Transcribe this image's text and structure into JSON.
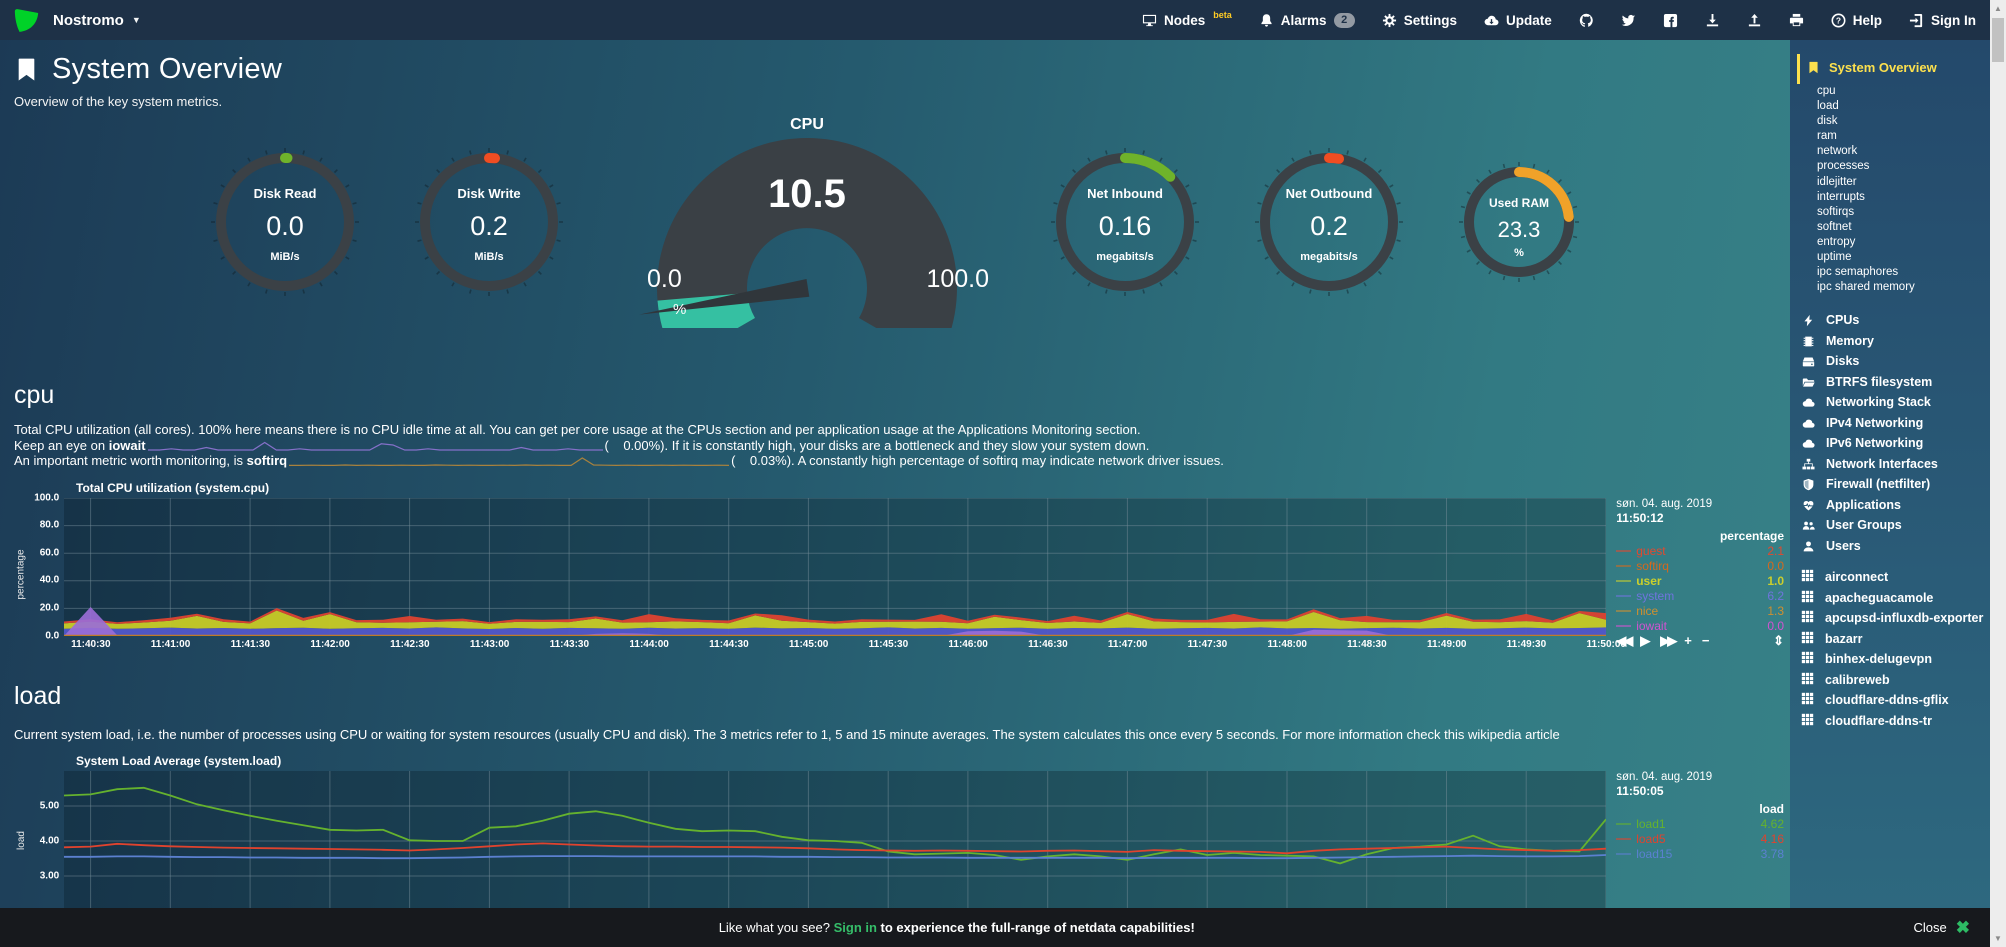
{
  "colors": {
    "brand_green": "#00d228",
    "topbar_bg": "#1e3147",
    "accent_yellow": "#fce04e",
    "beta_yellow": "#ffcc24",
    "signin_green": "#35bd69",
    "gauge_ring": "#3b4146",
    "gauge_teal": "#35c0a2",
    "black_bar": "#17191d"
  },
  "topbar": {
    "hostname": "Nostromo",
    "menu": [
      {
        "label": "Nodes",
        "icon": "desktop-icon",
        "sup": "beta"
      },
      {
        "label": "Alarms",
        "icon": "bell-icon",
        "badge": "2"
      },
      {
        "label": "Settings",
        "icon": "gear-icon"
      },
      {
        "label": "Update",
        "icon": "cloud-download-icon"
      }
    ],
    "icon_links": [
      "github-icon",
      "twitter-icon",
      "facebook-icon",
      "download-icon",
      "upload-icon",
      "print-icon"
    ],
    "help_label": "Help",
    "signin_label": "Sign In"
  },
  "header": {
    "title": "System Overview",
    "subtitle": "Overview of the key system metrics."
  },
  "gauges": [
    {
      "type": "pie",
      "title": "Disk Read",
      "value": "0.0",
      "unit": "MiB/s",
      "pct": 0.5,
      "color": "#6fb32b",
      "size": 152
    },
    {
      "type": "pie",
      "title": "Disk Write",
      "value": "0.2",
      "unit": "MiB/s",
      "pct": 1.5,
      "color": "#f04d22",
      "size": 152
    },
    {
      "type": "meter",
      "title": "CPU",
      "value": "10.5",
      "min": "0.0",
      "max": "100.0",
      "unit": "%",
      "pct": 10.5,
      "color": "#35c0a2"
    },
    {
      "type": "pie",
      "title": "Net Inbound",
      "value": "0.16",
      "unit": "megabits/s",
      "pct": 12.5,
      "color": "#6fb32b",
      "size": 152
    },
    {
      "type": "pie",
      "title": "Net Outbound",
      "value": "0.2",
      "unit": "megabits/s",
      "pct": 2.5,
      "color": "#f04d22",
      "size": 152
    },
    {
      "type": "pie",
      "title": "Used RAM",
      "value": "23.3",
      "unit": "%",
      "pct": 23.3,
      "color": "#f0a229",
      "size": 124,
      "small": true
    }
  ],
  "sections": {
    "cpu": {
      "heading": "cpu",
      "desc1": "Total CPU utilization (all cores). 100% here means there is no CPU idle time at all. You can get per core usage at the CPUs section and per application usage at the Applications Monitoring section.",
      "desc2_pre": "Keep an eye on ",
      "desc2_bold": "iowait",
      "desc2_post": "(    0.00%). If it is constantly high, your disks are a bottleneck and they slow your system down.",
      "desc3_pre": "An important metric worth monitoring, is ",
      "desc3_bold": "softirq",
      "desc3_post": "(    0.03%). A constantly high percentage of softirq may indicate network driver issues.",
      "chart": {
        "title": "Total CPU utilization (system.cpu)",
        "date": "søn. 04. aug. 2019",
        "time": "11:50:12",
        "units_header": "percentage",
        "ylabel": "percentage",
        "legend": [
          {
            "name": "guest",
            "value": "2.1",
            "color": "#e2492f"
          },
          {
            "name": "softirq",
            "value": "0.0",
            "color": "#d4691e"
          },
          {
            "name": "user",
            "value": "1.0",
            "color": "#cbcf2c",
            "bold": true
          },
          {
            "name": "system",
            "value": "6.2",
            "color": "#6f74dd"
          },
          {
            "name": "nice",
            "value": "1.3",
            "color": "#cf8f2f"
          },
          {
            "name": "iowait",
            "value": "0.0",
            "color": "#d153d1"
          }
        ],
        "toolbar": [
          "backwards",
          "play",
          "forwards",
          "zoom-in",
          "zoom-out",
          "resize"
        ]
      }
    },
    "load": {
      "heading": "load",
      "desc": "Current system load, i.e. the number of processes using CPU or waiting for system resources (usually CPU and disk). The 3 metrics refer to 1, 5 and 15 minute averages. The system calculates this once every 5 seconds. For more information check this wikipedia article",
      "chart": {
        "title": "System Load Average (system.load)",
        "date": "søn. 04. aug. 2019",
        "time": "11:50:05",
        "units_header": "load",
        "ylabel": "load",
        "legend": [
          {
            "name": "load1",
            "value": "4.62",
            "color": "#65b22e"
          },
          {
            "name": "load5",
            "value": "4.16",
            "color": "#e0432e"
          },
          {
            "name": "load15",
            "value": "3.78",
            "color": "#5b80d0"
          }
        ]
      }
    }
  },
  "chart_data": [
    {
      "id": "system.cpu",
      "type": "area",
      "title": "Total CPU utilization (system.cpu)",
      "ylabel": "percentage",
      "ylim": [
        0,
        100
      ],
      "ytick_labels": [
        "100.0",
        "80.0",
        "60.0",
        "40.0",
        "20.0",
        "0.0"
      ],
      "x_tick_labels": [
        "11:40:30",
        "11:41:00",
        "11:41:30",
        "11:42:00",
        "11:42:30",
        "11:43:00",
        "11:43:30",
        "11:44:00",
        "11:44:30",
        "11:45:00",
        "11:45:30",
        "11:46:00",
        "11:46:30",
        "11:47:00",
        "11:47:30",
        "11:48:00",
        "11:48:30",
        "11:49:00",
        "11:49:30",
        "11:50:00"
      ],
      "tick_start": 1,
      "tick_every": 3,
      "baseline_value": 0.4,
      "baseline_color": "#c07b28",
      "series": [
        {
          "name": "system",
          "color": "#5157c9",
          "values": [
            5.3,
            5.9,
            5.2,
            5.6,
            6.1,
            5.4,
            5.8,
            5.2,
            5.7,
            6.0,
            5.3,
            5.6,
            5.9,
            5.4,
            6.2,
            5.5,
            5.1,
            5.8,
            5.3,
            5.9,
            5.6,
            5.2,
            6.0,
            5.4,
            5.7,
            5.3,
            6.1,
            5.5,
            5.8,
            5.2,
            5.6,
            6.2,
            5.4,
            5.9,
            5.3,
            5.7,
            6.0,
            5.2,
            5.8,
            5.5,
            6.1,
            5.3,
            5.6,
            5.9,
            5.4,
            6.2,
            5.5,
            5.8,
            5.2,
            5.7,
            6.0,
            5.4,
            5.9,
            5.3,
            5.6,
            6.1,
            5.5,
            5.8,
            6.2
          ]
        },
        {
          "name": "user",
          "color": "#c6ca26",
          "values": [
            3.8,
            4.5,
            3.6,
            4.2,
            5.0,
            9.2,
            4.4,
            3.9,
            12.8,
            5.1,
            10.6,
            4.3,
            3.7,
            4.6,
            4.1,
            5.3,
            3.8,
            4.4,
            4.9,
            4.2,
            7.1,
            4.5,
            3.9,
            5.2,
            4.4,
            4.0,
            8.8,
            5.6,
            4.3,
            3.8,
            4.6,
            4.1,
            5.0,
            4.4,
            3.9,
            8.2,
            5.5,
            4.2,
            4.7,
            4.0,
            9.8,
            5.3,
            4.5,
            3.9,
            4.8,
            4.2,
            5.1,
            11.6,
            6.2,
            4.4,
            3.9,
            4.6,
            8.9,
            5.0,
            4.3,
            4.7,
            4.1,
            10.8,
            5.6
          ]
        },
        {
          "name": "guest",
          "color": "#dc4331",
          "values": [
            1.4,
            1.8,
            1.2,
            1.6,
            2.1,
            1.5,
            1.9,
            1.3,
            1.7,
            2.0,
            1.4,
            1.6,
            2.2,
            4.5,
            1.5,
            1.8,
            1.2,
            1.9,
            1.6,
            2.1,
            1.5,
            1.7,
            6.0,
            2.3,
            1.6,
            1.9,
            1.4,
            4.0,
            1.8,
            1.5,
            2.0,
            1.6,
            1.3,
            5.5,
            1.9,
            1.5,
            1.8,
            1.4,
            4.2,
            1.7,
            1.5,
            2.1,
            1.6,
            1.9,
            5.8,
            1.7,
            1.4,
            2.0,
            1.6,
            4.5,
            1.8,
            1.5,
            1.9,
            1.6,
            2.1,
            5.2,
            1.7,
            1.5,
            4.8
          ]
        },
        {
          "name": "iowait",
          "color": "#9a6cd6",
          "values": [
            0,
            21,
            0.5,
            0,
            0,
            0,
            0,
            0,
            0,
            0,
            0,
            0,
            0,
            0,
            0,
            0,
            0,
            0,
            0,
            0,
            1.5,
            2.0,
            1.5,
            0,
            0,
            0,
            0,
            0,
            0,
            0,
            0,
            0,
            0,
            0,
            3.5,
            3.8,
            3.2,
            0,
            0,
            0,
            0,
            0,
            0,
            0,
            0,
            0,
            0,
            4.5,
            4.2,
            3.9,
            0,
            0,
            0,
            0,
            0,
            0,
            0,
            0,
            0
          ]
        }
      ]
    },
    {
      "id": "system.load",
      "type": "line",
      "title": "System Load Average (system.load)",
      "ylabel": "load",
      "ylim": [
        2.0,
        6.0
      ],
      "gridlines": [
        5,
        4,
        3
      ],
      "ytick_labels": [
        "5.00",
        "4.00",
        "3.00"
      ],
      "tick_start": 1,
      "tick_every": 3,
      "series": [
        {
          "name": "load1",
          "color": "#65b22e",
          "values": [
            5.3,
            5.33,
            5.48,
            5.52,
            5.3,
            5.05,
            4.88,
            4.72,
            4.58,
            4.45,
            4.32,
            4.3,
            4.32,
            4.02,
            4.0,
            4.0,
            4.38,
            4.42,
            4.58,
            4.78,
            4.85,
            4.72,
            4.52,
            4.35,
            4.28,
            4.3,
            4.28,
            4.12,
            4.02,
            4.0,
            3.95,
            3.7,
            3.62,
            3.64,
            3.66,
            3.6,
            3.46,
            3.56,
            3.62,
            3.56,
            3.46,
            3.62,
            3.76,
            3.6,
            3.66,
            3.6,
            3.58,
            3.56,
            3.36,
            3.62,
            3.8,
            3.84,
            3.9,
            4.15,
            3.85,
            3.76,
            3.72,
            3.7,
            4.62
          ]
        },
        {
          "name": "load5",
          "color": "#e0432e",
          "values": [
            3.82,
            3.84,
            3.92,
            3.88,
            3.85,
            3.83,
            3.81,
            3.8,
            3.79,
            3.78,
            3.77,
            3.76,
            3.75,
            3.73,
            3.76,
            3.8,
            3.85,
            3.9,
            3.93,
            3.9,
            3.87,
            3.85,
            3.84,
            3.84,
            3.83,
            3.83,
            3.82,
            3.81,
            3.79,
            3.76,
            3.74,
            3.73,
            3.72,
            3.73,
            3.72,
            3.71,
            3.7,
            3.72,
            3.73,
            3.71,
            3.69,
            3.74,
            3.72,
            3.71,
            3.7,
            3.69,
            3.65,
            3.72,
            3.76,
            3.78,
            3.8,
            3.82,
            3.84,
            3.8,
            3.76,
            3.74,
            3.72,
            3.74,
            3.78
          ]
        },
        {
          "name": "load15",
          "color": "#5b80d0",
          "values": [
            3.55,
            3.55,
            3.56,
            3.56,
            3.55,
            3.54,
            3.54,
            3.53,
            3.53,
            3.52,
            3.52,
            3.52,
            3.51,
            3.51,
            3.52,
            3.53,
            3.55,
            3.56,
            3.57,
            3.57,
            3.57,
            3.56,
            3.56,
            3.56,
            3.56,
            3.56,
            3.56,
            3.55,
            3.55,
            3.54,
            3.54,
            3.53,
            3.53,
            3.53,
            3.52,
            3.52,
            3.52,
            3.52,
            3.52,
            3.52,
            3.51,
            3.52,
            3.52,
            3.52,
            3.52,
            3.51,
            3.51,
            3.52,
            3.53,
            3.54,
            3.55,
            3.56,
            3.57,
            3.58,
            3.57,
            3.56,
            3.56,
            3.57,
            3.6
          ]
        }
      ]
    },
    {
      "id": "iowait-sparkline",
      "type": "line",
      "color": "#8570c9",
      "ylim": [
        0,
        8
      ],
      "values": [
        0,
        0,
        1,
        0,
        0,
        2,
        0,
        0,
        0,
        0,
        6,
        0,
        0,
        1,
        0,
        0,
        0,
        0,
        0,
        0,
        5,
        4,
        0,
        0,
        1,
        0,
        0,
        0,
        0,
        0,
        0,
        0,
        2,
        0,
        0,
        0,
        1,
        0,
        0,
        0
      ]
    },
    {
      "id": "softirq-sparkline",
      "type": "line",
      "color": "#a9823d",
      "ylim": [
        0,
        5
      ],
      "values": [
        0.3,
        0.3,
        0.4,
        0.3,
        0.3,
        0.5,
        0.3,
        0.4,
        0.3,
        0.3,
        0.4,
        0.3,
        0.3,
        0.5,
        0.4,
        0.3,
        0.4,
        0.3,
        0.3,
        0.4,
        0.3,
        0.5,
        0.3,
        0.4,
        0.3,
        0.3,
        4.0,
        0.5,
        0.4,
        0.3,
        0.4,
        0.3,
        0.3,
        0.4,
        0.3,
        0.4,
        0.3,
        0.3,
        0.4,
        0.3
      ]
    }
  ],
  "sidebar": {
    "active": {
      "icon": "bookmark-icon",
      "label": "System Overview"
    },
    "overview_items": [
      "cpu",
      "load",
      "disk",
      "ram",
      "network",
      "processes",
      "idlejitter",
      "interrupts",
      "softirqs",
      "softnet",
      "entropy",
      "uptime",
      "ipc semaphores",
      "ipc shared memory"
    ],
    "sections": [
      {
        "icon": "bolt-icon",
        "label": "CPUs"
      },
      {
        "icon": "memory-icon",
        "label": "Memory"
      },
      {
        "icon": "hdd-icon",
        "label": "Disks"
      },
      {
        "icon": "folder-open-icon",
        "label": "BTRFS filesystem"
      },
      {
        "icon": "cloud-icon",
        "label": "Networking Stack"
      },
      {
        "icon": "cloud-icon",
        "label": "IPv4 Networking"
      },
      {
        "icon": "cloud-icon",
        "label": "IPv6 Networking"
      },
      {
        "icon": "sitemap-icon",
        "label": "Network Interfaces"
      },
      {
        "icon": "shield-icon",
        "label": "Firewall (netfilter)"
      },
      {
        "icon": "heartbeat-icon",
        "label": "Applications"
      },
      {
        "icon": "users-icon",
        "label": "User Groups"
      },
      {
        "icon": "user-icon",
        "label": "Users"
      }
    ],
    "hosts": [
      "airconnect",
      "apacheguacamole",
      "apcupsd-influxdb-exporter",
      "bazarr",
      "binhex-delugevpn",
      "calibreweb",
      "cloudflare-ddns-gflix",
      "cloudflare-ddns-tr"
    ]
  },
  "bottom_bar": {
    "pre": "Like what you see? ",
    "link": "Sign in",
    "post": " to experience the full-range of netdata capabilities!",
    "close_label": "Close"
  }
}
